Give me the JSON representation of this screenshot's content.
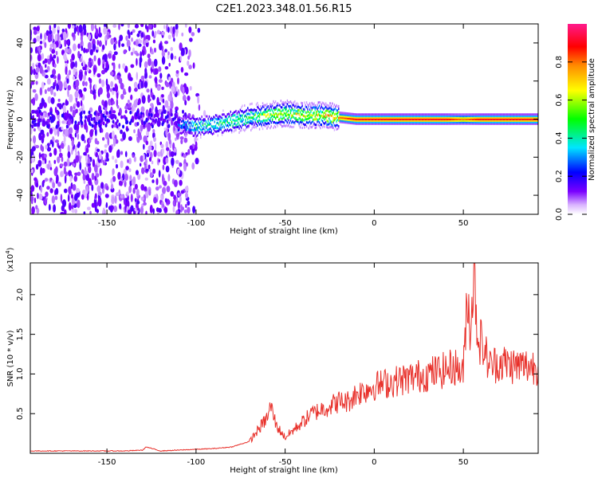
{
  "title": "C2E1.2023.348.01.56.R15",
  "chart_data": [
    {
      "type": "heatmap",
      "xlabel": "Height of straight line (km)",
      "ylabel": "Frequency (Hz)",
      "xlim": [
        -193,
        92
      ],
      "ylim": [
        -50,
        50
      ],
      "xticks": [
        -150,
        -100,
        -50,
        0,
        50
      ],
      "xtick_labels": [
        "-150",
        "-100",
        "-50",
        "0",
        "50"
      ],
      "yticks": [
        -40,
        -20,
        0,
        20,
        40
      ],
      "ytick_labels": [
        "-40",
        "-20",
        "0",
        "20",
        "40"
      ],
      "colorbar": {
        "label": "Normalized spectral amplitude",
        "range": [
          0,
          1
        ],
        "ticks": [
          0.0,
          0.2,
          0.4,
          0.6,
          0.8
        ],
        "tick_labels": [
          "0.0",
          "0.2",
          "0.4",
          "0.6",
          "0.8"
        ],
        "colors": [
          "#ffffff",
          "#7a00ff",
          "#0000ff",
          "#00e5ff",
          "#00ff00",
          "#ffff00",
          "#ff8c00",
          "#ff0000",
          "#ff1a8c"
        ]
      },
      "ridge": {
        "x": [
          -110,
          -100,
          -90,
          -80,
          -70,
          -60,
          -50,
          -40,
          -30,
          -20,
          -10,
          0,
          20,
          40,
          50,
          60,
          92
        ],
        "freq": [
          -3,
          -4,
          -3,
          -1,
          1,
          2,
          3,
          2,
          2,
          1,
          0,
          0,
          0,
          0,
          0,
          0,
          0
        ],
        "peak_amplitude": [
          0.3,
          0.45,
          0.45,
          0.5,
          0.55,
          0.65,
          0.7,
          0.7,
          0.75,
          0.8,
          0.9,
          0.9,
          0.9,
          0.9,
          0.8,
          0.9,
          0.9
        ]
      },
      "noise_region_x": [
        -193,
        -95
      ]
    },
    {
      "type": "line",
      "xlabel": "Height of straight line (km)",
      "ylabel": "SNR (10 * v/v)",
      "multiplier": "(x10^4)",
      "xlim": [
        -193,
        92
      ],
      "ylim": [
        0,
        2.4
      ],
      "xticks": [
        -150,
        -100,
        -50,
        0,
        50
      ],
      "xtick_labels": [
        "-150",
        "-100",
        "-50",
        "0",
        "50"
      ],
      "yticks": [
        0.5,
        1.0,
        1.5,
        2.0
      ],
      "ytick_labels": [
        "0.5",
        "1.0",
        "1.5",
        "2.0"
      ],
      "series": [
        {
          "color": "#e8302a",
          "x": [
            -193,
            -180,
            -160,
            -140,
            -130,
            -128,
            -120,
            -110,
            -100,
            -90,
            -80,
            -70,
            -65,
            -60,
            -58,
            -55,
            -50,
            -45,
            -40,
            -35,
            -30,
            -25,
            -20,
            -15,
            -10,
            -5,
            0,
            10,
            20,
            30,
            40,
            45,
            50,
            52,
            54,
            56,
            58,
            60,
            65,
            70,
            80,
            92
          ],
          "y": [
            0.03,
            0.03,
            0.03,
            0.03,
            0.04,
            0.08,
            0.03,
            0.04,
            0.05,
            0.06,
            0.08,
            0.15,
            0.3,
            0.45,
            0.6,
            0.35,
            0.2,
            0.3,
            0.4,
            0.5,
            0.55,
            0.6,
            0.65,
            0.65,
            0.75,
            0.8,
            0.85,
            0.9,
            0.95,
            1.0,
            1.05,
            1.1,
            1.0,
            2.0,
            1.6,
            2.3,
            1.5,
            1.4,
            1.1,
            1.15,
            1.1,
            1.1
          ]
        }
      ]
    }
  ]
}
